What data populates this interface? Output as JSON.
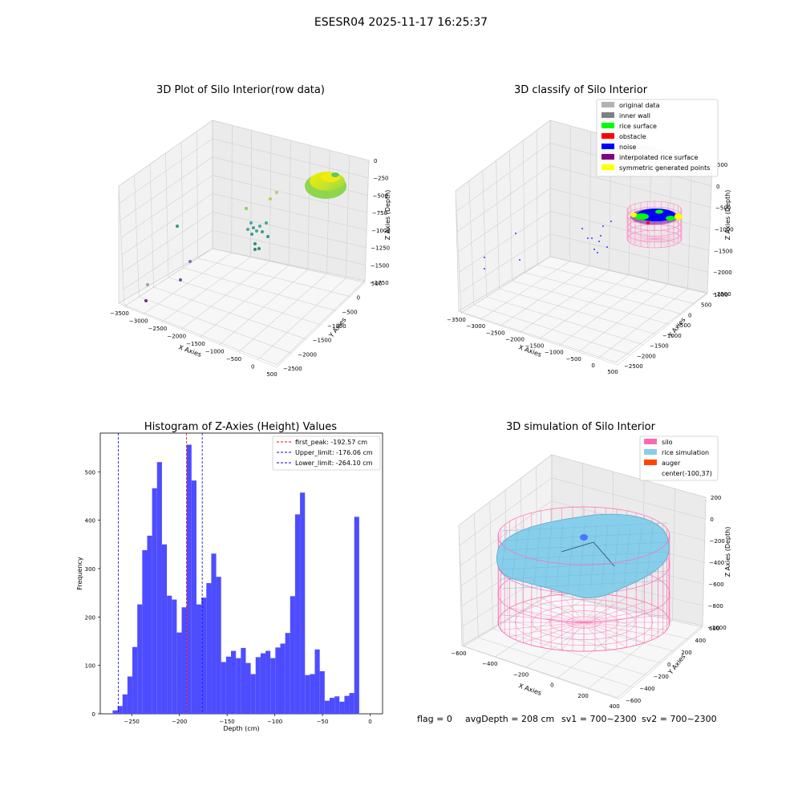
{
  "figure": {
    "suptitle": "ESESR04 2025-11-17 16:25:37"
  },
  "chart_data": [
    {
      "type": "scatter3d",
      "title": "3D Plot of Silo Interior(row data)",
      "xlabel": "X Axies",
      "ylabel": "Y Axies",
      "zlabel": "Z Axies (Depth)",
      "x_ticks": [
        "−3500",
        "−3000",
        "−2500",
        "−2000",
        "−1500",
        "−1000",
        "−500",
        "0",
        "500"
      ],
      "y_ticks": [
        "−2500",
        "−2000",
        "−1500",
        "−1000",
        "−500",
        "0",
        "500"
      ],
      "z_ticks": [
        "0",
        "−250",
        "−500",
        "−750",
        "−1000",
        "−1250",
        "−1500",
        "−1750"
      ],
      "xlim": [
        -3500,
        500
      ],
      "ylim": [
        -2500,
        500
      ],
      "zlim": [
        -1750,
        0
      ],
      "colormap": "viridis"
    },
    {
      "type": "scatter3d",
      "title": "3D classify of Silo Interior",
      "xlabel": "X Axies",
      "ylabel": "Y Axies",
      "zlabel": "Z Axies (Depth)",
      "x_ticks": [
        "−3500",
        "−3000",
        "−2500",
        "−2000",
        "−1500",
        "−1000",
        "−500",
        "0",
        "500"
      ],
      "y_ticks": [
        "−2500",
        "−2000",
        "−1500",
        "−1000",
        "−500",
        "0",
        "500",
        "1000"
      ],
      "z_ticks": [
        "500",
        "0",
        "−500",
        "−1000",
        "−1500",
        "−2000",
        "−2500"
      ],
      "xlim": [
        -3500,
        500
      ],
      "ylim": [
        -2500,
        1000
      ],
      "zlim": [
        -2500,
        500
      ],
      "legend_position": "top-right",
      "legend": [
        {
          "label": "original data",
          "color": "#b2b2b2"
        },
        {
          "label": "inner wall",
          "color": "#808080"
        },
        {
          "label": "rice surface",
          "color": "#00ff00"
        },
        {
          "label": "obstacle",
          "color": "#ff0000"
        },
        {
          "label": "noise",
          "color": "#0000ff"
        },
        {
          "label": "interpolated rice surface",
          "color": "#800080"
        },
        {
          "label": "symmetric generated points",
          "color": "#ffff00"
        }
      ]
    },
    {
      "type": "bar",
      "title": "Histogram of Z-Axies (Height) Values",
      "xlabel": "Depth (cm)",
      "ylabel": "Frequency",
      "xlim": [
        -283,
        13
      ],
      "ylim": [
        0,
        580
      ],
      "x_ticks": [
        -250,
        -200,
        -150,
        -100,
        -50,
        0
      ],
      "y_ticks": [
        0,
        100,
        200,
        300,
        400,
        500
      ],
      "bar_color": "#4d4dff",
      "bin_start": -270,
      "bin_width": 5.17,
      "values": [
        7,
        16,
        40,
        77,
        138,
        226,
        338,
        368,
        466,
        520,
        350,
        244,
        236,
        168,
        220,
        556,
        482,
        226,
        240,
        270,
        331,
        283,
        107,
        118,
        130,
        115,
        136,
        105,
        82,
        117,
        125,
        130,
        115,
        137,
        145,
        167,
        243,
        412,
        457,
        80,
        82,
        133,
        88,
        27,
        33,
        36,
        25,
        37,
        43,
        407
      ],
      "reference_lines": [
        {
          "label": "first_peak: -192.57 cm",
          "value": -192.57,
          "color": "#ff0000"
        },
        {
          "label": "Upper_limit: -176.06 cm",
          "value": -176.06,
          "color": "#0000ff"
        },
        {
          "label": "Lower_limit: -264.10 cm",
          "value": -264.1,
          "color": "#0000ff"
        }
      ],
      "legend_position": "top-right"
    },
    {
      "type": "surface3d",
      "title": "3D simulation of Silo Interior",
      "xlabel": "X Axies",
      "ylabel": "Y Axies",
      "zlabel": "Z Axies (Depth)",
      "x_ticks": [
        "−600",
        "−400",
        "−200",
        "0",
        "200",
        "400"
      ],
      "y_ticks": [
        "−600",
        "−400",
        "−200",
        "0",
        "200",
        "400",
        "600"
      ],
      "z_ticks": [
        "200",
        "0",
        "−200",
        "−400",
        "−600",
        "−800",
        "−1000"
      ],
      "xlim": [
        -700,
        500
      ],
      "ylim": [
        -600,
        700
      ],
      "zlim": [
        -1000,
        250
      ],
      "legend_position": "top-right",
      "legend": [
        {
          "label": "silo",
          "color": "#ff69b4"
        },
        {
          "label": "rice simulation",
          "color": "#87ceeb"
        },
        {
          "label": "auger",
          "color": "#ff4500"
        },
        {
          "label": "center(-100,37)",
          "color": ""
        }
      ]
    }
  ],
  "status_line": {
    "flag": "flag = 0",
    "avg_depth": "avgDepth = 208 cm",
    "sv1": "sv1 = 700~2300",
    "sv2": "sv2 = 700~2300"
  }
}
